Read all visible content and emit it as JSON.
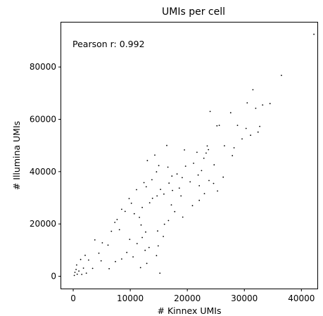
{
  "chart_data": {
    "type": "scatter",
    "title": "UMIs per cell",
    "xlabel": "# Kinnex UMIs",
    "ylabel": "# Illumina UMIs",
    "annotation": "Pearson r: 0.992",
    "xlim": [
      -2100,
      42800
    ],
    "ylim": [
      -4700,
      97000
    ],
    "xticks": [
      0,
      10000,
      20000,
      30000,
      40000
    ],
    "xtick_labels": [
      "0",
      "10000",
      "20000",
      "30000",
      "40000"
    ],
    "yticks": [
      0,
      20000,
      40000,
      60000,
      80000
    ],
    "ytick_labels": [
      "0",
      "20000",
      "40000",
      "60000",
      "80000"
    ],
    "grid": false,
    "marker_color": "#000000",
    "series": [
      {
        "points": [
          [
            42200,
            92500
          ],
          [
            36500,
            76800
          ],
          [
            31500,
            71300
          ],
          [
            34500,
            66000
          ],
          [
            33200,
            65500
          ],
          [
            30500,
            66300
          ],
          [
            32000,
            64200
          ],
          [
            32700,
            57300
          ],
          [
            32400,
            55100
          ],
          [
            30300,
            56500
          ],
          [
            31100,
            53900
          ],
          [
            29600,
            52500
          ],
          [
            28800,
            57700
          ],
          [
            28200,
            49100
          ],
          [
            27600,
            62500
          ],
          [
            25600,
            57700
          ],
          [
            25200,
            57500
          ],
          [
            24000,
            63000
          ],
          [
            23500,
            49800
          ],
          [
            23700,
            48400
          ],
          [
            23300,
            47100
          ],
          [
            22900,
            45100
          ],
          [
            21700,
            47400
          ],
          [
            19500,
            48300
          ],
          [
            16400,
            50000
          ],
          [
            14300,
            46300
          ],
          [
            13000,
            44200
          ],
          [
            26500,
            49900
          ],
          [
            27900,
            46100
          ],
          [
            24700,
            42600
          ],
          [
            23800,
            36600
          ],
          [
            24600,
            35500
          ],
          [
            26300,
            37900
          ],
          [
            22100,
            34600
          ],
          [
            23000,
            31600
          ],
          [
            22100,
            29000
          ],
          [
            20900,
            27000
          ],
          [
            19200,
            22600
          ],
          [
            17800,
            24700
          ],
          [
            18900,
            30700
          ],
          [
            17200,
            27300
          ],
          [
            16700,
            21300
          ],
          [
            16000,
            19900
          ],
          [
            15800,
            15200
          ],
          [
            14900,
            11600
          ],
          [
            13300,
            11000
          ],
          [
            14600,
            7900
          ],
          [
            12900,
            4900
          ],
          [
            11800,
            3300
          ],
          [
            15200,
            1200
          ],
          [
            12600,
            9900
          ],
          [
            11200,
            12500
          ],
          [
            12100,
            14800
          ],
          [
            9900,
            14100
          ],
          [
            8500,
            6600
          ],
          [
            7400,
            5600
          ],
          [
            6300,
            2900
          ],
          [
            9400,
            9100
          ],
          [
            10500,
            7400
          ],
          [
            5100,
            12800
          ],
          [
            4500,
            8800
          ],
          [
            6100,
            11900
          ],
          [
            7700,
            21700
          ],
          [
            8500,
            25600
          ],
          [
            7300,
            20600
          ],
          [
            9800,
            29700
          ],
          [
            11100,
            33100
          ],
          [
            12400,
            35800
          ],
          [
            13800,
            36900
          ],
          [
            15000,
            42300
          ],
          [
            16600,
            41700
          ],
          [
            14600,
            39900
          ],
          [
            18200,
            39100
          ],
          [
            19700,
            42100
          ],
          [
            21100,
            43200
          ],
          [
            22500,
            40400
          ],
          [
            25300,
            32600
          ],
          [
            12700,
            16900
          ],
          [
            11900,
            19600
          ],
          [
            14800,
            17300
          ],
          [
            10200,
            27900
          ],
          [
            6700,
            17200
          ],
          [
            3800,
            13900
          ],
          [
            2700,
            6200
          ],
          [
            1800,
            3100
          ],
          [
            3400,
            3000
          ],
          [
            2100,
            8000
          ],
          [
            1300,
            6400
          ],
          [
            4900,
            5900
          ],
          [
            600,
            4300
          ],
          [
            1000,
            2000
          ],
          [
            300,
            1500
          ],
          [
            2300,
            1200
          ],
          [
            700,
            800
          ],
          [
            200,
            300
          ],
          [
            500,
            2600
          ],
          [
            1500,
            700
          ],
          [
            12800,
            34200
          ],
          [
            17300,
            38300
          ],
          [
            19100,
            37700
          ],
          [
            20500,
            36100
          ],
          [
            21900,
            38700
          ],
          [
            18600,
            33700
          ],
          [
            16800,
            35600
          ],
          [
            15300,
            33200
          ],
          [
            13900,
            29800
          ],
          [
            14700,
            30700
          ],
          [
            15900,
            31400
          ],
          [
            17400,
            32800
          ],
          [
            10700,
            23900
          ],
          [
            9100,
            24800
          ],
          [
            11600,
            22500
          ],
          [
            8100,
            17800
          ],
          [
            12100,
            26300
          ],
          [
            13400,
            28100
          ]
        ]
      }
    ]
  }
}
